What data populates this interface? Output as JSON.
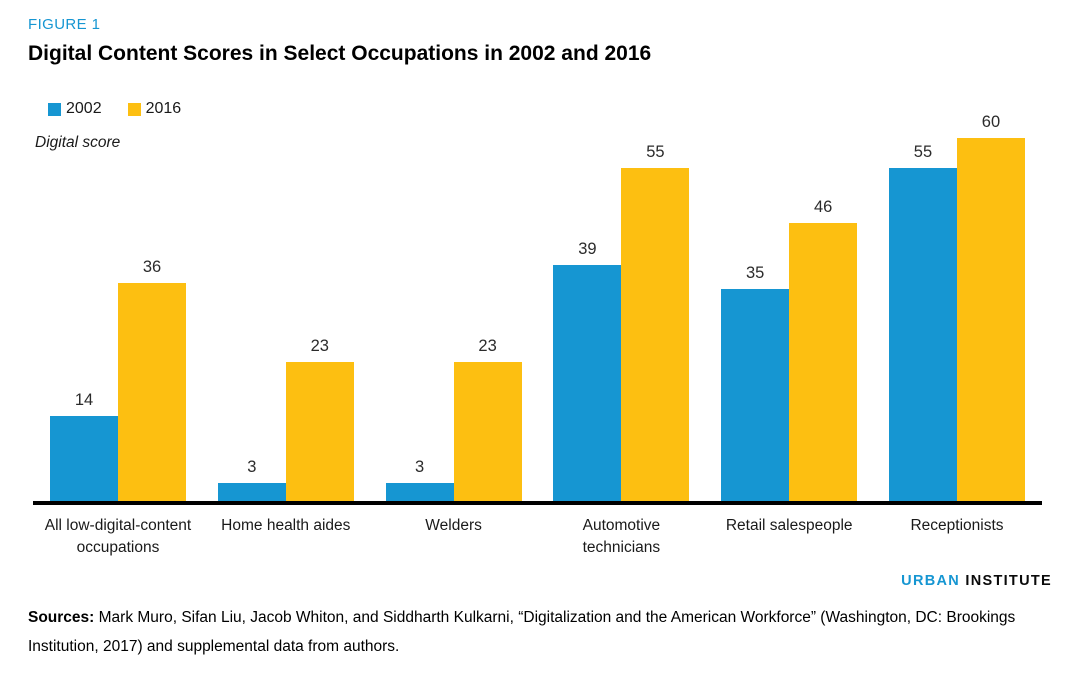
{
  "figure_label": "FIGURE 1",
  "title": "Digital Content Scores in Select Occupations in 2002 and 2016",
  "legend": {
    "items": [
      {
        "label": "2002",
        "color": "#1696d2"
      },
      {
        "label": "2016",
        "color": "#fdbf11"
      }
    ]
  },
  "chart_data": {
    "type": "bar",
    "title": "Digital Content Scores in Select Occupations in 2002 and 2016",
    "ylabel": "Digital score",
    "xlabel": "",
    "ylim": [
      0,
      62
    ],
    "grid": false,
    "legend_position": "top-left",
    "data_labels": true,
    "categories": [
      "All low-digital-content occupations",
      "Home health aides",
      "Welders",
      "Automotive technicians",
      "Retail salespeople",
      "Receptionists"
    ],
    "series": [
      {
        "name": "2002",
        "color": "#1696d2",
        "values": [
          14,
          3,
          3,
          39,
          35,
          55
        ]
      },
      {
        "name": "2016",
        "color": "#fdbf11",
        "values": [
          36,
          23,
          23,
          55,
          46,
          60
        ]
      }
    ]
  },
  "axis_label": "Digital score",
  "branding": {
    "part1": "URBAN",
    "part2": "INSTITUTE"
  },
  "sources": {
    "label": "Sources:",
    "text": " Mark Muro, Sifan Liu, Jacob Whiton, and Siddharth Kulkarni, “Digitalization and the American Workforce” (Washington, DC: Brookings Institution, 2017) and supplemental data from authors."
  }
}
